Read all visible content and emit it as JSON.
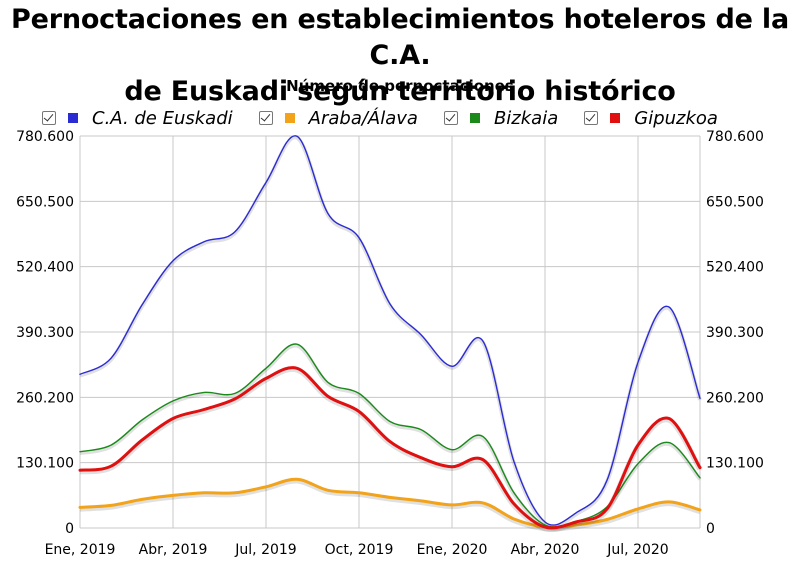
{
  "title_line1": "Pernoctaciones en establecimientos hoteleros de la C.A.",
  "title_line2": "de Euskadi según territorio histórico",
  "legend": [
    {
      "label": "C.A. de Euskadi",
      "color": "#2b2bd4",
      "icon": "checkbox-checked-icon"
    },
    {
      "label": "Araba/Álava",
      "color": "#f2a31a",
      "icon": "checkbox-checked-icon"
    },
    {
      "label": "Bizkaia",
      "color": "#1b8a1b",
      "icon": "checkbox-checked-icon"
    },
    {
      "label": "Gipuzkoa",
      "color": "#e01010",
      "icon": "checkbox-checked-icon"
    }
  ],
  "chart_data": {
    "type": "line",
    "title": "Pernoctaciones en establecimientos hoteleros de la C.A. de Euskadi según territorio histórico",
    "ylabel": "Número de pernoctaciones",
    "xlabel": "",
    "ylim": [
      0,
      780600
    ],
    "yticks": [
      0,
      130100,
      260200,
      390300,
      520400,
      650500,
      780600
    ],
    "ytick_labels": [
      "0",
      "130.100",
      "260.200",
      "390.300",
      "520.400",
      "650.500",
      "780.600"
    ],
    "x": [
      "Ene, 2019",
      "Feb, 2019",
      "Mar, 2019",
      "Abr, 2019",
      "May, 2019",
      "Jun, 2019",
      "Jul, 2019",
      "Ago, 2019",
      "Sep, 2019",
      "Oct, 2019",
      "Nov, 2019",
      "Dic, 2019",
      "Ene, 2020",
      "Feb, 2020",
      "Mar, 2020",
      "Abr, 2020",
      "May, 2020",
      "Jun, 2020",
      "Jul, 2020",
      "Ago, 2020",
      "Sep, 2020"
    ],
    "xtick_indices": [
      0,
      3,
      6,
      9,
      12,
      15,
      18
    ],
    "xtick_labels": [
      "Ene, 2019",
      "Abr, 2019",
      "Jul, 2019",
      "Oct, 2019",
      "Ene, 2020",
      "Abr, 2020",
      "Jul, 2020"
    ],
    "grid": true,
    "series": [
      {
        "name": "C.A. de Euskadi",
        "color": "#2b2bd4",
        "values": [
          306000,
          338000,
          444000,
          532000,
          570000,
          590000,
          688000,
          780000,
          626000,
          578000,
          446000,
          385000,
          322000,
          372000,
          132000,
          12000,
          30000,
          95000,
          330000,
          440000,
          258000
        ]
      },
      {
        "name": "Araba/Álava",
        "color": "#f2a31a",
        "values": [
          41000,
          45000,
          57000,
          65000,
          70000,
          70000,
          82000,
          97000,
          75000,
          70000,
          61000,
          54000,
          46000,
          50000,
          18000,
          2000,
          6000,
          17000,
          38000,
          52000,
          36000
        ]
      },
      {
        "name": "Bizkaia",
        "color": "#1b8a1b",
        "values": [
          152000,
          165000,
          215000,
          253000,
          270000,
          268000,
          318000,
          366000,
          290000,
          268000,
          212000,
          196000,
          156000,
          182000,
          70000,
          6000,
          13000,
          42000,
          128000,
          170000,
          100000
        ]
      },
      {
        "name": "Gipuzkoa",
        "color": "#e01010",
        "values": [
          115000,
          123000,
          175000,
          218000,
          236000,
          257000,
          298000,
          318000,
          262000,
          232000,
          172000,
          140000,
          122000,
          136000,
          48000,
          2000,
          12000,
          38000,
          165000,
          218000,
          120000
        ]
      }
    ]
  }
}
